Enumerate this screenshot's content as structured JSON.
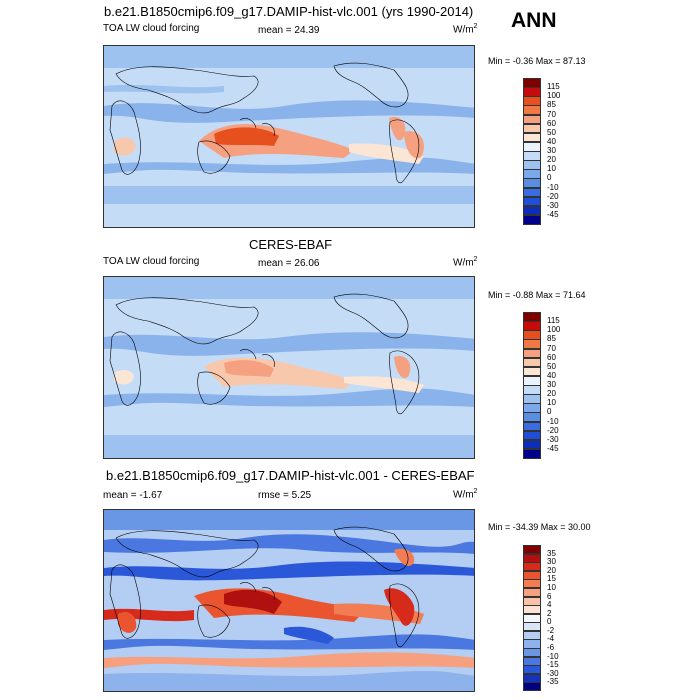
{
  "season": "ANN",
  "panels": [
    {
      "title": "b.e21.B1850cmip6.f09_g17.DAMIP-hist-vlc.001 (yrs 1990-2014)",
      "variable": "TOA LW cloud forcing",
      "stat1": "mean =  24.39",
      "stat2": "",
      "units": "W/m",
      "units_sup": "2",
      "minmax": "Min =  -0.36 Max =  87.13",
      "levels": [
        "115",
        "100",
        "85",
        "70",
        "60",
        "50",
        "40",
        "30",
        "20",
        "10",
        "0",
        "-10",
        "-20",
        "-30",
        "-45"
      ],
      "colors": [
        "#800000",
        "#c40c0c",
        "#e6501e",
        "#f07845",
        "#f5a080",
        "#f8c8ac",
        "#fbe5d5",
        "#eaf3fc",
        "#c5dcf6",
        "#9ec2ef",
        "#7aa8e8",
        "#5a8ee2",
        "#3a6ee0",
        "#1f4ed8",
        "#0e2eb8",
        "#00008a"
      ]
    },
    {
      "title": "CERES-EBAF",
      "variable": "TOA LW cloud forcing",
      "stat1": "mean =  26.06",
      "stat2": "",
      "units": "W/m",
      "units_sup": "2",
      "minmax": "Min =  -0.88 Max =  71.64",
      "levels": [
        "115",
        "100",
        "85",
        "70",
        "60",
        "50",
        "40",
        "30",
        "20",
        "10",
        "0",
        "-10",
        "-20",
        "-30",
        "-45"
      ],
      "colors": [
        "#800000",
        "#c40c0c",
        "#e6501e",
        "#f07845",
        "#f5a080",
        "#f8c8ac",
        "#fbe5d5",
        "#eaf3fc",
        "#c5dcf6",
        "#9ec2ef",
        "#7aa8e8",
        "#5a8ee2",
        "#3a6ee0",
        "#1f4ed8",
        "#0e2eb8",
        "#00008a"
      ]
    },
    {
      "title": "b.e21.B1850cmip6.f09_g17.DAMIP-hist-vlc.001 - CERES-EBAF",
      "variable": "",
      "stat1": "mean =  -1.67",
      "stat2": "rmse =   5.25",
      "units": "W/m",
      "units_sup": "2",
      "minmax": "Min = -34.39 Max =  30.00",
      "levels": [
        "35",
        "30",
        "20",
        "15",
        "10",
        "6",
        "4",
        "2",
        "0",
        "-2",
        "-4",
        "-6",
        "-10",
        "-15",
        "-30",
        "-35"
      ],
      "colors": [
        "#800000",
        "#b01010",
        "#d62a1a",
        "#ea5530",
        "#f27d55",
        "#f6a080",
        "#f9c2a8",
        "#fce2d2",
        "#f4f8fd",
        "#d8e6f8",
        "#b4cdf2",
        "#8eb2ec",
        "#6a96e6",
        "#4a78e0",
        "#2a58d8",
        "#1434b8",
        "#000080"
      ]
    }
  ]
}
